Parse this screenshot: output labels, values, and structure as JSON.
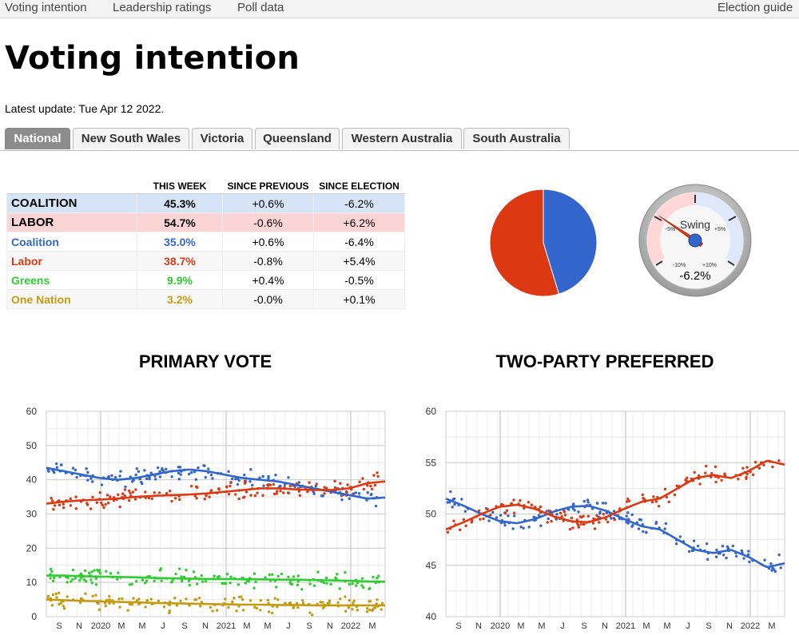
{
  "nav": {
    "items": [
      "Voting intention",
      "Leadership ratings",
      "Poll data"
    ],
    "right": "Election guide"
  },
  "page": {
    "title": "Voting intention",
    "latest_update": "Latest update: Tue Apr 12 2022."
  },
  "tabs": [
    "National",
    "New South Wales",
    "Victoria",
    "Queensland",
    "Western Australia",
    "South Australia"
  ],
  "active_tab": "National",
  "colors": {
    "coalition": "#3366cc",
    "labor": "#dc3912",
    "greens": "#2ecc2e",
    "one_nation": "#c49a10"
  },
  "table": {
    "headers": [
      "",
      "THIS WEEK",
      "SINCE PREVIOUS",
      "SINCE ELECTION"
    ],
    "rows": [
      {
        "name": "COALITION",
        "this_week": "45.3%",
        "since_previous": "+0.6%",
        "since_election": "-6.2%"
      },
      {
        "name": "LABOR",
        "this_week": "54.7%",
        "since_previous": "-0.6%",
        "since_election": "+6.2%"
      },
      {
        "name": "Coalition",
        "this_week": "35.0%",
        "since_previous": "+0.6%",
        "since_election": "-6.4%"
      },
      {
        "name": "Labor",
        "this_week": "38.7%",
        "since_previous": "-0.8%",
        "since_election": "+5.4%"
      },
      {
        "name": "Greens",
        "this_week": "9.9%",
        "since_previous": "+0.4%",
        "since_election": "-0.5%"
      },
      {
        "name": "One Nation",
        "this_week": "3.2%",
        "since_previous": "-0.0%",
        "since_election": "+0.1%"
      }
    ]
  },
  "gauge": {
    "label": "Swing",
    "value_text": "-6.2%",
    "value": -6.2,
    "tick_labels": [
      "-5%",
      "+5%",
      "-10%",
      "+10%"
    ]
  },
  "chart_data": [
    {
      "type": "pie",
      "title": "",
      "slices": [
        {
          "name": "Coalition",
          "value": 45.3
        },
        {
          "name": "Labor",
          "value": 54.7
        }
      ]
    },
    {
      "type": "scatter",
      "title": "PRIMARY VOTE",
      "ylim": [
        0,
        60
      ],
      "yticks": [
        0,
        10,
        20,
        30,
        40,
        50,
        60
      ],
      "xticks": [
        "S",
        "N",
        "2020",
        "M",
        "M",
        "J",
        "S",
        "N",
        "2021",
        "M",
        "M",
        "J",
        "S",
        "N",
        "2022",
        "M"
      ],
      "series": [
        {
          "name": "Coalition",
          "trend": [
            43.5,
            42.5,
            41.5,
            40.5,
            40.0,
            40.5,
            41.5,
            42.5,
            43.0,
            42.5,
            41.5,
            40.5,
            40.0,
            39.5,
            38.5,
            37.5,
            36.5,
            35.5,
            34.5,
            34.8
          ]
        },
        {
          "name": "Labor",
          "trend": [
            33.0,
            33.6,
            34.0,
            34.2,
            34.5,
            35.0,
            35.3,
            35.5,
            35.7,
            36.0,
            36.5,
            37.0,
            37.5,
            37.5,
            37.2,
            37.0,
            37.0,
            37.5,
            39.0,
            39.5
          ]
        },
        {
          "name": "Greens",
          "trend": [
            12.0,
            12.0,
            11.8,
            11.7,
            11.6,
            11.5,
            11.3,
            11.2,
            11.1,
            11.0,
            11.0,
            10.9,
            10.9,
            10.8,
            10.8,
            10.7,
            10.6,
            10.5,
            10.3,
            10.2
          ]
        },
        {
          "name": "One Nation",
          "trend": [
            5.0,
            4.8,
            4.6,
            4.5,
            4.3,
            4.2,
            4.0,
            3.9,
            3.8,
            3.7,
            3.6,
            3.5,
            3.5,
            3.4,
            3.4,
            3.3,
            3.3,
            3.3,
            3.3,
            3.3
          ]
        }
      ]
    },
    {
      "type": "scatter",
      "title": "TWO-PARTY PREFERRED",
      "ylim": [
        40,
        60
      ],
      "yticks": [
        40,
        45,
        50,
        55,
        60
      ],
      "xticks": [
        "S",
        "N",
        "2020",
        "M",
        "M",
        "J",
        "S",
        "N",
        "2021",
        "M",
        "M",
        "J",
        "S",
        "N",
        "2022",
        "M"
      ],
      "series": [
        {
          "name": "Coalition",
          "trend": [
            51.5,
            50.8,
            50.0,
            49.3,
            49.1,
            49.5,
            50.2,
            50.7,
            50.8,
            50.3,
            49.5,
            48.8,
            48.5,
            47.5,
            46.5,
            46.2,
            46.5,
            45.8,
            44.8,
            45.2
          ]
        },
        {
          "name": "Labor",
          "trend": [
            48.5,
            49.2,
            50.0,
            50.7,
            50.9,
            50.5,
            49.8,
            49.3,
            49.2,
            49.7,
            50.5,
            51.2,
            51.5,
            52.5,
            53.5,
            53.8,
            53.5,
            54.2,
            55.2,
            54.8
          ]
        }
      ]
    }
  ]
}
